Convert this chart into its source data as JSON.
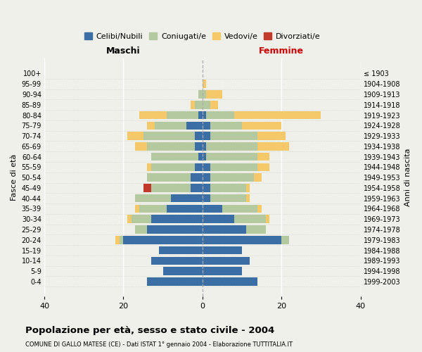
{
  "age_groups": [
    "0-4",
    "5-9",
    "10-14",
    "15-19",
    "20-24",
    "25-29",
    "30-34",
    "35-39",
    "40-44",
    "45-49",
    "50-54",
    "55-59",
    "60-64",
    "65-69",
    "70-74",
    "75-79",
    "80-84",
    "85-89",
    "90-94",
    "95-99",
    "100+"
  ],
  "birth_years": [
    "1999-2003",
    "1994-1998",
    "1989-1993",
    "1984-1988",
    "1979-1983",
    "1974-1978",
    "1969-1973",
    "1964-1968",
    "1959-1963",
    "1954-1958",
    "1949-1953",
    "1944-1948",
    "1939-1943",
    "1934-1938",
    "1929-1933",
    "1924-1928",
    "1919-1923",
    "1914-1918",
    "1909-1913",
    "1904-1908",
    "≤ 1903"
  ],
  "maschi": {
    "celibi": [
      14,
      10,
      13,
      11,
      20,
      14,
      13,
      9,
      8,
      3,
      3,
      2,
      1,
      2,
      2,
      4,
      1,
      0,
      0,
      0,
      0
    ],
    "coniugati": [
      0,
      0,
      0,
      0,
      1,
      3,
      5,
      7,
      9,
      10,
      11,
      11,
      12,
      12,
      13,
      8,
      8,
      2,
      1,
      0,
      0
    ],
    "vedovi": [
      0,
      0,
      0,
      0,
      1,
      0,
      1,
      1,
      0,
      0,
      0,
      1,
      0,
      3,
      4,
      2,
      7,
      1,
      0,
      0,
      0
    ],
    "divorziati": [
      0,
      0,
      0,
      0,
      0,
      0,
      0,
      0,
      0,
      2,
      0,
      0,
      0,
      0,
      0,
      0,
      0,
      0,
      0,
      0,
      0
    ]
  },
  "femmine": {
    "nubili": [
      14,
      10,
      12,
      10,
      20,
      11,
      8,
      5,
      2,
      2,
      2,
      2,
      1,
      1,
      2,
      2,
      1,
      0,
      0,
      0,
      0
    ],
    "coniugate": [
      0,
      0,
      0,
      0,
      2,
      5,
      8,
      9,
      9,
      9,
      11,
      12,
      13,
      13,
      12,
      8,
      7,
      2,
      1,
      0,
      0
    ],
    "vedove": [
      0,
      0,
      0,
      0,
      0,
      0,
      1,
      1,
      1,
      1,
      2,
      3,
      3,
      8,
      7,
      10,
      22,
      2,
      4,
      1,
      0
    ],
    "divorziate": [
      0,
      0,
      0,
      0,
      0,
      0,
      0,
      0,
      0,
      0,
      0,
      0,
      0,
      0,
      0,
      0,
      0,
      0,
      0,
      0,
      0
    ]
  },
  "colors": {
    "celibi_nubili": "#3b6ea5",
    "coniugati": "#b5c9a0",
    "vedovi": "#f5c96a",
    "divorziati": "#c0392b"
  },
  "xlim": 40,
  "title": "Popolazione per età, sesso e stato civile - 2004",
  "subtitle": "COMUNE DI GALLO MATESE (CE) - Dati ISTAT 1° gennaio 2004 - Elaborazione TUTTITALIA.IT",
  "xlabel_left": "Maschi",
  "xlabel_right": "Femmine",
  "ylabel_left": "Fasce di età",
  "ylabel_right": "Anni di nascita",
  "legend_labels": [
    "Celibi/Nubili",
    "Coniugati/e",
    "Vedovi/e",
    "Divorziati/e"
  ],
  "bg_color": "#f0f0eb"
}
